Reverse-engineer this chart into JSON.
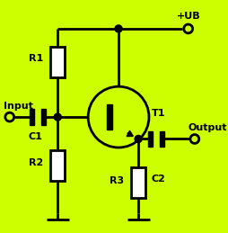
{
  "bg_color": "#CCFF00",
  "line_color": "#000000",
  "line_width": 2.0,
  "component_fill": "#FFFFFF",
  "text_color": "#000000",
  "fig_width": 2.55,
  "fig_height": 2.59,
  "dpi": 100,
  "xlim": [
    0,
    255
  ],
  "ylim": [
    0,
    259
  ],
  "R1_label": "R1",
  "R2_label": "R2",
  "R3_label": "R3",
  "C1_label": "C1",
  "C2_label": "C2",
  "T1_label": "T1",
  "input_label": "Input",
  "output_label": "Output",
  "ub_label": "+UB"
}
